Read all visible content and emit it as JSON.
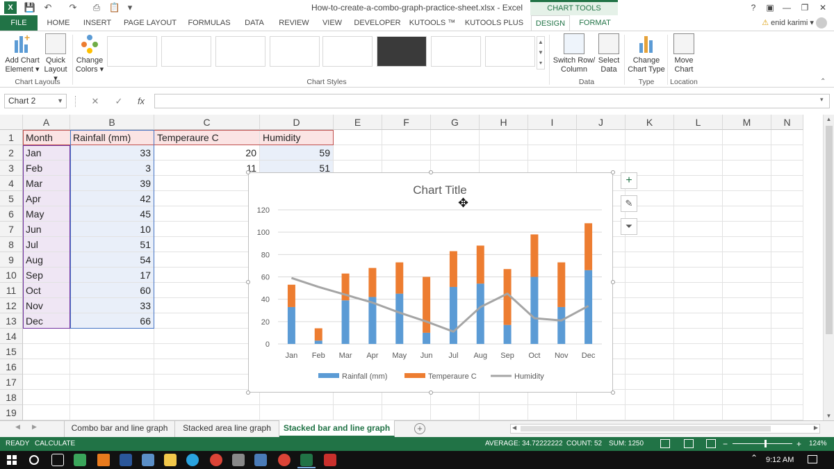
{
  "window": {
    "title": "How-to-create-a-combo-graph-practice-sheet.xlsx - Excel",
    "contextual_group": "CHART TOOLS",
    "controls": [
      "?",
      "▣",
      "—",
      "❐",
      "✕"
    ]
  },
  "ribbon_tabs": [
    {
      "label": "FILE"
    },
    {
      "label": "HOME"
    },
    {
      "label": "INSERT"
    },
    {
      "label": "PAGE LAYOUT"
    },
    {
      "label": "FORMULAS"
    },
    {
      "label": "DATA"
    },
    {
      "label": "REVIEW"
    },
    {
      "label": "VIEW"
    },
    {
      "label": "DEVELOPER"
    },
    {
      "label": "KUTOOLS ™"
    },
    {
      "label": "KUTOOLS PLUS"
    },
    {
      "label": "DESIGN"
    },
    {
      "label": "FORMAT"
    }
  ],
  "user": {
    "name": "enid karimi"
  },
  "ribbon": {
    "add_chart_element": {
      "line1": "Add Chart",
      "line2": "Element ▾"
    },
    "quick_layout": {
      "line1": "Quick",
      "line2": "Layout ▾"
    },
    "change_colors": {
      "line1": "Change",
      "line2": "Colors ▾"
    },
    "switch_row_column": {
      "line1": "Switch Row/",
      "line2": "Column"
    },
    "select_data": {
      "line1": "Select",
      "line2": "Data"
    },
    "change_chart_type": {
      "line1": "Change",
      "line2": "Chart Type"
    },
    "move_chart": {
      "line1": "Move",
      "line2": "Chart"
    },
    "groups": {
      "chart_layouts": "Chart Layouts",
      "chart_styles": "Chart Styles",
      "data": "Data",
      "type": "Type",
      "location": "Location"
    }
  },
  "formula_bar": {
    "name_box": "Chart 2",
    "fx": "fx",
    "cancel": "✕",
    "enter": "✓",
    "value": ""
  },
  "columns": [
    "A",
    "B",
    "C",
    "D",
    "E",
    "F",
    "G",
    "H",
    "I",
    "J",
    "K",
    "L",
    "M",
    "N"
  ],
  "rows": [
    "1",
    "2",
    "3",
    "4",
    "5",
    "6",
    "7",
    "8",
    "9",
    "10",
    "11",
    "12",
    "13",
    "14",
    "15",
    "16",
    "17",
    "18",
    "19"
  ],
  "headers": [
    "Month",
    "Rainfall (mm)",
    "Temperaure C",
    "Humidity"
  ],
  "table": [
    {
      "month": "Jan",
      "rain": "33",
      "temp": "20",
      "hum": "59"
    },
    {
      "month": "Feb",
      "rain": "3",
      "temp": "11",
      "hum": "51"
    },
    {
      "month": "Mar",
      "rain": "39"
    },
    {
      "month": "Apr",
      "rain": "42"
    },
    {
      "month": "May",
      "rain": "45"
    },
    {
      "month": "Jun",
      "rain": "10"
    },
    {
      "month": "Jul",
      "rain": "51"
    },
    {
      "month": "Aug",
      "rain": "54"
    },
    {
      "month": "Sep",
      "rain": "17"
    },
    {
      "month": "Oct",
      "rain": "60"
    },
    {
      "month": "Nov",
      "rain": "33"
    },
    {
      "month": "Dec",
      "rain": "66"
    }
  ],
  "chart_data": {
    "type": "bar",
    "stacked": true,
    "title": "Chart Title",
    "categories": [
      "Jan",
      "Feb",
      "Mar",
      "Apr",
      "May",
      "Jun",
      "Jul",
      "Aug",
      "Sep",
      "Oct",
      "Nov",
      "Dec"
    ],
    "series": [
      {
        "name": "Rainfall (mm)",
        "kind": "bar",
        "color": "#5b9bd5",
        "values": [
          33,
          3,
          39,
          42,
          45,
          10,
          51,
          54,
          17,
          60,
          33,
          66
        ]
      },
      {
        "name": "Temperaure C",
        "kind": "bar",
        "color": "#ed7d31",
        "values": [
          20,
          11,
          24,
          26,
          28,
          50,
          32,
          34,
          50,
          38,
          40,
          42
        ]
      },
      {
        "name": "Humidity",
        "kind": "line",
        "color": "#a5a5a5",
        "values": [
          59,
          51,
          44,
          37,
          28,
          20,
          11,
          33,
          45,
          23,
          21,
          34
        ]
      }
    ],
    "ylim": [
      0,
      120
    ],
    "yticks": [
      "0",
      "20",
      "40",
      "60",
      "80",
      "100",
      "120"
    ],
    "grid": true,
    "legend": "bottom"
  },
  "sheet_tabs": [
    {
      "label": "Combo bar and line graph"
    },
    {
      "label": "Stacked area line graph"
    },
    {
      "label": "Stacked bar and line graph"
    }
  ],
  "status": {
    "ready": "READY",
    "calculate": "CALCULATE",
    "average": "AVERAGE: 34.72222222",
    "count": "COUNT: 52",
    "sum": "SUM: 1250",
    "zoom": "124%"
  },
  "taskbar": {
    "time": "9:12 AM"
  }
}
